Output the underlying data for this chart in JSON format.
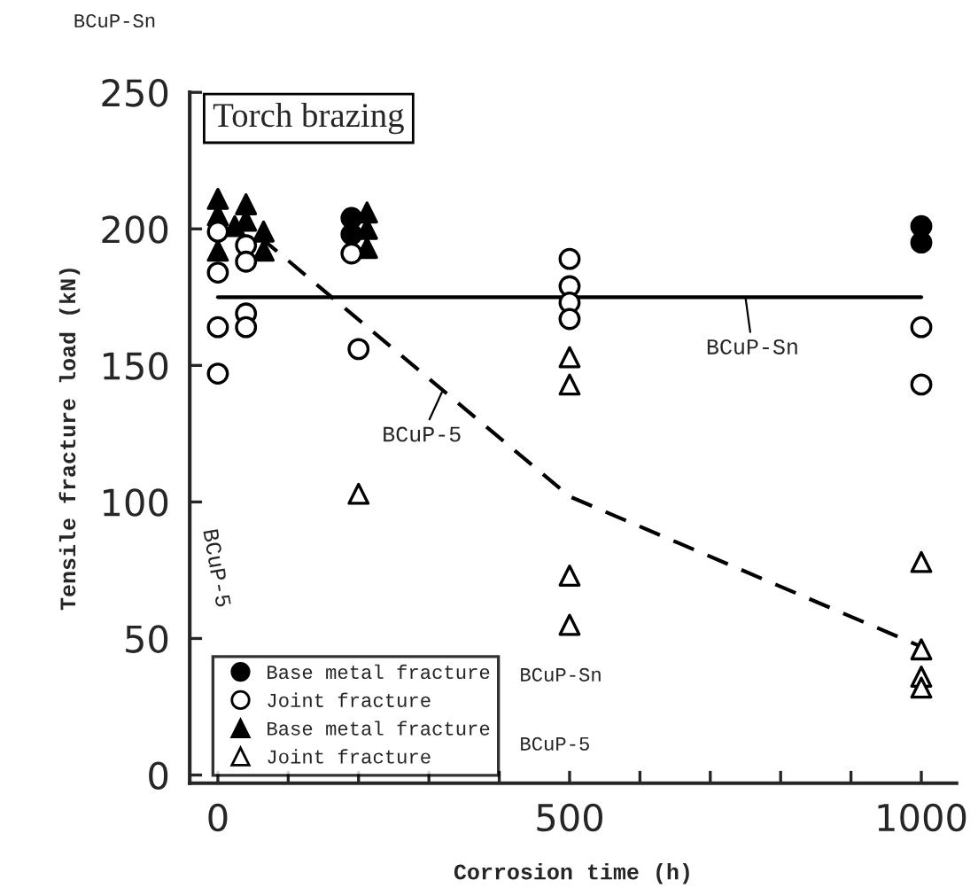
{
  "chart_data": {
    "type": "scatter",
    "title": "Torch brazing",
    "xlabel": "Corrosion time (h)",
    "ylabel": "Tensile fracture load (kN)",
    "xlim": [
      -40,
      1050
    ],
    "ylim": [
      -3,
      250
    ],
    "xticks": [
      0,
      {
        "value": 100,
        "label": null
      },
      {
        "value": 200,
        "label": null
      },
      {
        "value": 300,
        "label": null
      },
      {
        "value": 400,
        "label": null
      },
      500,
      {
        "value": 600,
        "label": null
      },
      {
        "value": 700,
        "label": null
      },
      {
        "value": 800,
        "label": null
      },
      {
        "value": 900,
        "label": null
      },
      1000
    ],
    "yticks": [
      0,
      50,
      100,
      150,
      200,
      250
    ],
    "grid": false,
    "legend": "bottom left",
    "series": [
      {
        "name": "Base metal fracture",
        "marker": "circle",
        "color": "#000000",
        "x": [
          190,
          190,
          1000,
          1000
        ],
        "values": [
          204,
          198,
          201,
          195
        ]
      },
      {
        "name": "Joint fracture",
        "marker": "circle",
        "color": "#ffffff",
        "x": [
          0,
          0,
          0,
          0,
          40,
          40,
          40,
          40,
          190,
          200,
          500,
          500,
          500,
          500,
          1000,
          1000
        ],
        "values": [
          199,
          184,
          164,
          147,
          194,
          188,
          169,
          164,
          191,
          156,
          189,
          179,
          173,
          167,
          164,
          143
        ]
      },
      {
        "name": "Base metal fracture",
        "marker": "triangle",
        "color": "#000000",
        "x": [
          0,
          0,
          0,
          24,
          40,
          40,
          65,
          65,
          212,
          212,
          212
        ],
        "values": [
          211,
          205,
          192,
          201,
          209,
          203,
          199,
          192,
          206,
          200,
          193
        ]
      },
      {
        "name": "Joint fracture",
        "marker": "triangle",
        "color": "#ffffff",
        "x": [
          200,
          500,
          500,
          500,
          500,
          1000,
          1000,
          1000,
          1000
        ],
        "values": [
          103,
          153,
          143,
          73,
          55,
          78,
          46,
          36,
          32
        ]
      },
      {
        "name": "BCuP-Sn",
        "type": "line",
        "line_style": "solid",
        "color": "#000000",
        "x": [
          0,
          1000
        ],
        "values": [
          175,
          175
        ]
      },
      {
        "name": "BCuP-5",
        "type": "line",
        "line_style": "dashed",
        "color": "#000000",
        "x": [
          60,
          500,
          1000
        ],
        "values": [
          197,
          102,
          47
        ]
      }
    ],
    "annotations": [
      "BCuP-Sn",
      "BCuP-Sn",
      "BCuP-5",
      "BCuP-5"
    ]
  }
}
